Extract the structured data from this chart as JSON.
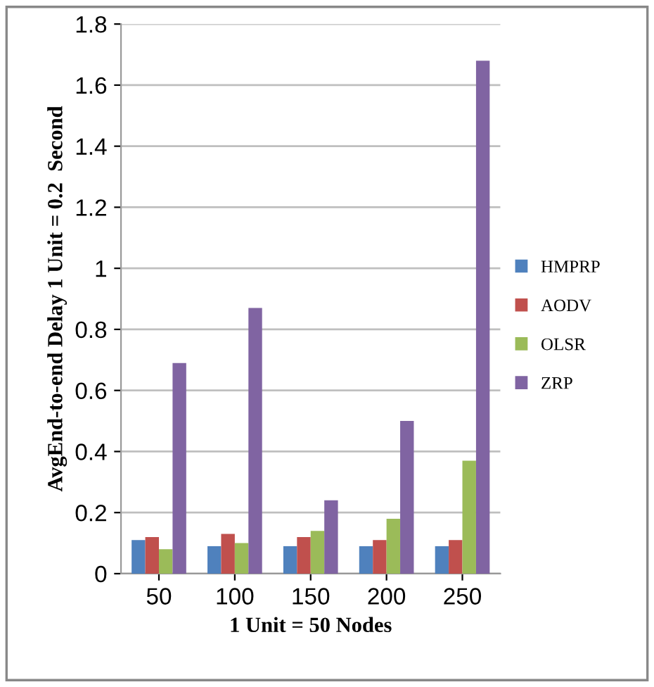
{
  "chart_data": {
    "type": "bar",
    "xlabel": "1 Unit = 50 Nodes",
    "ylabel": "AvgEnd-to-end Delay 1 Unit = 0.2  Second",
    "categories": [
      "50",
      "100",
      "150",
      "200",
      "250"
    ],
    "series": [
      {
        "name": "HMPRP",
        "color": "#4f81bd",
        "values": [
          0.11,
          0.09,
          0.09,
          0.09,
          0.09
        ]
      },
      {
        "name": "AODV",
        "color": "#c0504d",
        "values": [
          0.12,
          0.13,
          0.12,
          0.11,
          0.11
        ]
      },
      {
        "name": "OLSR",
        "color": "#9bbb59",
        "values": [
          0.08,
          0.1,
          0.14,
          0.18,
          0.37
        ]
      },
      {
        "name": "ZRP",
        "color": "#8064a2",
        "values": [
          0.69,
          0.87,
          0.24,
          0.5,
          1.68
        ]
      }
    ],
    "ylim": [
      0,
      1.8
    ],
    "yticks": [
      0,
      {
        "value": 0.2,
        "label": "0.2"
      },
      {
        "value": 0.4,
        "label": "0.4"
      },
      {
        "value": 0.6,
        "label": "0.6"
      },
      {
        "value": 0.8,
        "label": "0.8"
      },
      1,
      {
        "value": 1.2,
        "label": "1.2"
      },
      {
        "value": 1.4,
        "label": "1.4"
      },
      {
        "value": 1.6,
        "label": "1.6"
      },
      {
        "value": 1.8,
        "label": "1.8"
      }
    ],
    "grid": "y",
    "legend": "right"
  }
}
